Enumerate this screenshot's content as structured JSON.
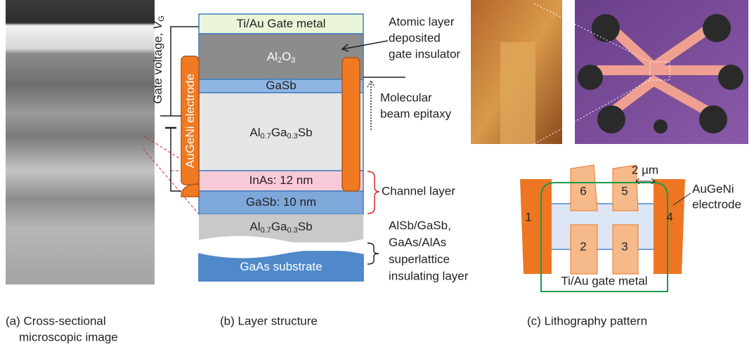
{
  "panel_a": {
    "caption": [
      "(a) Cross-sectional",
      "microscopic image"
    ]
  },
  "panel_b": {
    "caption": "(b) Layer structure",
    "gate_voltage": {
      "text": "Gate voltage, ",
      "symbol": "V",
      "sub": "G"
    },
    "electrode": "AuGeNi electrode",
    "layers": [
      [
        {
          "text": "Ti/Au Gate metal"
        }
      ],
      [
        {
          "text": "Al"
        },
        {
          "sub": "2"
        },
        {
          "text": "O"
        },
        {
          "sub": "3"
        }
      ],
      [
        {
          "text": "GaSb"
        }
      ],
      [
        {
          "text": "Al"
        },
        {
          "sub": "0.7"
        },
        {
          "text": "Ga"
        },
        {
          "sub": "0.3"
        },
        {
          "text": "Sb"
        }
      ],
      [
        {
          "text": "InAs: 12 nm"
        }
      ],
      [
        {
          "text": "GaSb: 10 nm"
        }
      ],
      [
        {
          "text": "Al"
        },
        {
          "sub": "0.7"
        },
        {
          "text": "Ga"
        },
        {
          "sub": "0.3"
        },
        {
          "text": "Sb"
        }
      ],
      [
        {
          "text": "GaAs substrate"
        }
      ]
    ],
    "annotations": {
      "ald": [
        "Atomic layer",
        "deposited",
        "gate insulator"
      ],
      "mbe": [
        "Molecular",
        "beam epitaxy"
      ],
      "channel": "Channel layer",
      "superlattice": [
        "AlSb/GaSb,",
        "GaAs/AlAs",
        "superlattice",
        "insulating layer"
      ]
    }
  },
  "panel_c": {
    "caption": "(c) Lithography pattern",
    "scale": "2 µm",
    "electrode": [
      "AuGeNi",
      "electrode"
    ],
    "pads": [
      "1",
      "2",
      "3",
      "4",
      "5",
      "6"
    ],
    "gate": "Ti/Au gate metal"
  }
}
